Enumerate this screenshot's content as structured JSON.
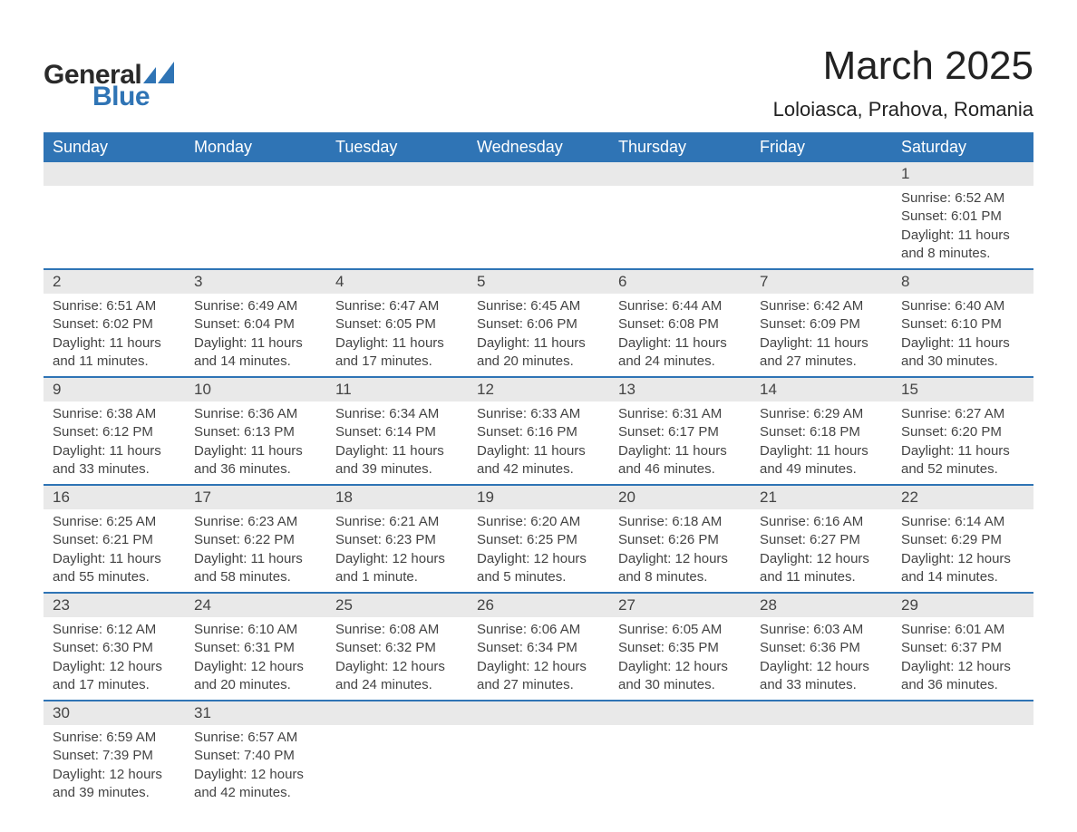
{
  "brand": {
    "name1": "General",
    "name2": "Blue",
    "tri_color": "#2f74b5"
  },
  "title": "March 2025",
  "location": "Loloiasca, Prahova, Romania",
  "colors": {
    "header_bg": "#2f74b5",
    "header_fg": "#ffffff",
    "daynum_bg": "#e9e9e9",
    "rule": "#2f74b5",
    "text": "#444444"
  },
  "weekdays": [
    "Sunday",
    "Monday",
    "Tuesday",
    "Wednesday",
    "Thursday",
    "Friday",
    "Saturday"
  ],
  "weeks": [
    [
      null,
      null,
      null,
      null,
      null,
      null,
      {
        "n": "1",
        "sr": "Sunrise: 6:52 AM",
        "ss": "Sunset: 6:01 PM",
        "d1": "Daylight: 11 hours",
        "d2": "and 8 minutes."
      }
    ],
    [
      {
        "n": "2",
        "sr": "Sunrise: 6:51 AM",
        "ss": "Sunset: 6:02 PM",
        "d1": "Daylight: 11 hours",
        "d2": "and 11 minutes."
      },
      {
        "n": "3",
        "sr": "Sunrise: 6:49 AM",
        "ss": "Sunset: 6:04 PM",
        "d1": "Daylight: 11 hours",
        "d2": "and 14 minutes."
      },
      {
        "n": "4",
        "sr": "Sunrise: 6:47 AM",
        "ss": "Sunset: 6:05 PM",
        "d1": "Daylight: 11 hours",
        "d2": "and 17 minutes."
      },
      {
        "n": "5",
        "sr": "Sunrise: 6:45 AM",
        "ss": "Sunset: 6:06 PM",
        "d1": "Daylight: 11 hours",
        "d2": "and 20 minutes."
      },
      {
        "n": "6",
        "sr": "Sunrise: 6:44 AM",
        "ss": "Sunset: 6:08 PM",
        "d1": "Daylight: 11 hours",
        "d2": "and 24 minutes."
      },
      {
        "n": "7",
        "sr": "Sunrise: 6:42 AM",
        "ss": "Sunset: 6:09 PM",
        "d1": "Daylight: 11 hours",
        "d2": "and 27 minutes."
      },
      {
        "n": "8",
        "sr": "Sunrise: 6:40 AM",
        "ss": "Sunset: 6:10 PM",
        "d1": "Daylight: 11 hours",
        "d2": "and 30 minutes."
      }
    ],
    [
      {
        "n": "9",
        "sr": "Sunrise: 6:38 AM",
        "ss": "Sunset: 6:12 PM",
        "d1": "Daylight: 11 hours",
        "d2": "and 33 minutes."
      },
      {
        "n": "10",
        "sr": "Sunrise: 6:36 AM",
        "ss": "Sunset: 6:13 PM",
        "d1": "Daylight: 11 hours",
        "d2": "and 36 minutes."
      },
      {
        "n": "11",
        "sr": "Sunrise: 6:34 AM",
        "ss": "Sunset: 6:14 PM",
        "d1": "Daylight: 11 hours",
        "d2": "and 39 minutes."
      },
      {
        "n": "12",
        "sr": "Sunrise: 6:33 AM",
        "ss": "Sunset: 6:16 PM",
        "d1": "Daylight: 11 hours",
        "d2": "and 42 minutes."
      },
      {
        "n": "13",
        "sr": "Sunrise: 6:31 AM",
        "ss": "Sunset: 6:17 PM",
        "d1": "Daylight: 11 hours",
        "d2": "and 46 minutes."
      },
      {
        "n": "14",
        "sr": "Sunrise: 6:29 AM",
        "ss": "Sunset: 6:18 PM",
        "d1": "Daylight: 11 hours",
        "d2": "and 49 minutes."
      },
      {
        "n": "15",
        "sr": "Sunrise: 6:27 AM",
        "ss": "Sunset: 6:20 PM",
        "d1": "Daylight: 11 hours",
        "d2": "and 52 minutes."
      }
    ],
    [
      {
        "n": "16",
        "sr": "Sunrise: 6:25 AM",
        "ss": "Sunset: 6:21 PM",
        "d1": "Daylight: 11 hours",
        "d2": "and 55 minutes."
      },
      {
        "n": "17",
        "sr": "Sunrise: 6:23 AM",
        "ss": "Sunset: 6:22 PM",
        "d1": "Daylight: 11 hours",
        "d2": "and 58 minutes."
      },
      {
        "n": "18",
        "sr": "Sunrise: 6:21 AM",
        "ss": "Sunset: 6:23 PM",
        "d1": "Daylight: 12 hours",
        "d2": "and 1 minute."
      },
      {
        "n": "19",
        "sr": "Sunrise: 6:20 AM",
        "ss": "Sunset: 6:25 PM",
        "d1": "Daylight: 12 hours",
        "d2": "and 5 minutes."
      },
      {
        "n": "20",
        "sr": "Sunrise: 6:18 AM",
        "ss": "Sunset: 6:26 PM",
        "d1": "Daylight: 12 hours",
        "d2": "and 8 minutes."
      },
      {
        "n": "21",
        "sr": "Sunrise: 6:16 AM",
        "ss": "Sunset: 6:27 PM",
        "d1": "Daylight: 12 hours",
        "d2": "and 11 minutes."
      },
      {
        "n": "22",
        "sr": "Sunrise: 6:14 AM",
        "ss": "Sunset: 6:29 PM",
        "d1": "Daylight: 12 hours",
        "d2": "and 14 minutes."
      }
    ],
    [
      {
        "n": "23",
        "sr": "Sunrise: 6:12 AM",
        "ss": "Sunset: 6:30 PM",
        "d1": "Daylight: 12 hours",
        "d2": "and 17 minutes."
      },
      {
        "n": "24",
        "sr": "Sunrise: 6:10 AM",
        "ss": "Sunset: 6:31 PM",
        "d1": "Daylight: 12 hours",
        "d2": "and 20 minutes."
      },
      {
        "n": "25",
        "sr": "Sunrise: 6:08 AM",
        "ss": "Sunset: 6:32 PM",
        "d1": "Daylight: 12 hours",
        "d2": "and 24 minutes."
      },
      {
        "n": "26",
        "sr": "Sunrise: 6:06 AM",
        "ss": "Sunset: 6:34 PM",
        "d1": "Daylight: 12 hours",
        "d2": "and 27 minutes."
      },
      {
        "n": "27",
        "sr": "Sunrise: 6:05 AM",
        "ss": "Sunset: 6:35 PM",
        "d1": "Daylight: 12 hours",
        "d2": "and 30 minutes."
      },
      {
        "n": "28",
        "sr": "Sunrise: 6:03 AM",
        "ss": "Sunset: 6:36 PM",
        "d1": "Daylight: 12 hours",
        "d2": "and 33 minutes."
      },
      {
        "n": "29",
        "sr": "Sunrise: 6:01 AM",
        "ss": "Sunset: 6:37 PM",
        "d1": "Daylight: 12 hours",
        "d2": "and 36 minutes."
      }
    ],
    [
      {
        "n": "30",
        "sr": "Sunrise: 6:59 AM",
        "ss": "Sunset: 7:39 PM",
        "d1": "Daylight: 12 hours",
        "d2": "and 39 minutes."
      },
      {
        "n": "31",
        "sr": "Sunrise: 6:57 AM",
        "ss": "Sunset: 7:40 PM",
        "d1": "Daylight: 12 hours",
        "d2": "and 42 minutes."
      },
      null,
      null,
      null,
      null,
      null
    ]
  ]
}
